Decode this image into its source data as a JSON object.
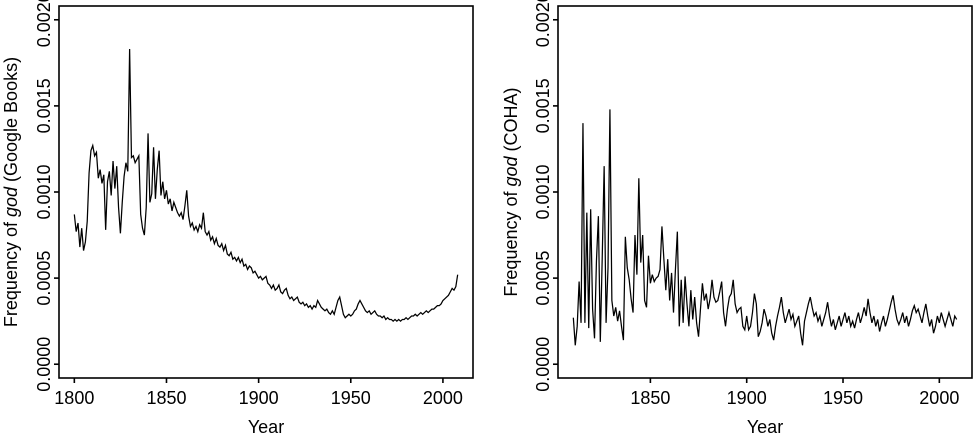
{
  "figure": {
    "background": "#ffffff",
    "axis_color": "#000000",
    "text_color": "#000000",
    "line_color": "#000000"
  },
  "chart_data": [
    {
      "id": "google-books",
      "type": "line",
      "title": "",
      "xlabel": "Year",
      "ylabel": "Frequency of god (Google Books)",
      "ylabel_parts": {
        "prefix": "Frequency of ",
        "italic_word": "god",
        "suffix": " (Google Books)"
      },
      "legend": "none",
      "grid": false,
      "xlim": [
        1800,
        2008
      ],
      "ylim": [
        0,
        0.002
      ],
      "x_ticks": {
        "values": [
          1800,
          1850,
          1900,
          1950,
          2000
        ],
        "labels": [
          "1800",
          "1850",
          "1900",
          "1950",
          "2000"
        ]
      },
      "y_ticks": {
        "values": [
          0,
          0.0005,
          0.001,
          0.0015,
          0.002
        ],
        "labels": [
          "0.0000",
          "0.0005",
          "0.0010",
          "0.0015",
          "0.0020"
        ]
      },
      "x_start": 1800,
      "x_end": 2008,
      "x_step": 1,
      "values": [
        0.00087,
        0.00077,
        0.00082,
        0.00068,
        0.00079,
        0.00066,
        0.00071,
        0.00083,
        0.00111,
        0.00124,
        0.00127,
        0.00121,
        0.00123,
        0.00108,
        0.00113,
        0.00105,
        0.0011,
        0.00078,
        0.00106,
        0.00112,
        0.00098,
        0.00118,
        0.00102,
        0.00115,
        0.00091,
        0.00076,
        0.00094,
        0.00109,
        0.00117,
        0.00112,
        0.00183,
        0.0012,
        0.00121,
        0.00117,
        0.00119,
        0.00121,
        0.00087,
        0.00079,
        0.00075,
        0.00091,
        0.00134,
        0.00094,
        0.00099,
        0.00126,
        0.00096,
        0.00113,
        0.00124,
        0.00098,
        0.00106,
        0.00096,
        0.00101,
        0.00093,
        0.00096,
        0.00089,
        0.00094,
        0.00091,
        0.00088,
        0.00086,
        0.00088,
        0.00084,
        0.00092,
        0.00101,
        0.00086,
        0.0008,
        0.00082,
        0.00078,
        0.0008,
        0.00077,
        0.00081,
        0.00079,
        0.00088,
        0.00077,
        0.00075,
        0.00077,
        0.00072,
        0.00074,
        0.0007,
        0.00073,
        0.00069,
        0.00068,
        0.0007,
        0.00066,
        0.00069,
        0.00064,
        0.00063,
        0.00065,
        0.00061,
        0.00062,
        0.0006,
        0.00062,
        0.00059,
        0.00061,
        0.00057,
        0.00058,
        0.00055,
        0.00057,
        0.00056,
        0.00053,
        0.00054,
        0.00052,
        0.0005,
        0.00051,
        0.00049,
        0.0005,
        0.00051,
        0.00047,
        0.00046,
        0.00044,
        0.00046,
        0.00043,
        0.00044,
        0.00046,
        0.00042,
        0.00041,
        0.00043,
        0.00044,
        0.0004,
        0.00038,
        0.00039,
        0.00037,
        0.00038,
        0.00039,
        0.00036,
        0.00035,
        0.00036,
        0.00034,
        0.00035,
        0.00033,
        0.00034,
        0.00032,
        0.00034,
        0.00033,
        0.00037,
        0.00035,
        0.00033,
        0.00032,
        0.00031,
        0.00032,
        0.0003,
        0.00029,
        0.00031,
        0.00029,
        0.00033,
        0.00037,
        0.00039,
        0.00034,
        0.00029,
        0.00027,
        0.00028,
        0.00029,
        0.00028,
        0.00029,
        0.00031,
        0.00032,
        0.00035,
        0.00037,
        0.00035,
        0.00033,
        0.00031,
        0.0003,
        0.00031,
        0.00029,
        0.0003,
        0.00031,
        0.00029,
        0.00028,
        0.00028,
        0.00027,
        0.00028,
        0.00026,
        0.00027,
        0.00026,
        0.00026,
        0.00025,
        0.00026,
        0.00025,
        0.00026,
        0.00025,
        0.00026,
        0.00026,
        0.00027,
        0.00026,
        0.00027,
        0.00028,
        0.00028,
        0.00029,
        0.00028,
        0.00029,
        0.0003,
        0.00029,
        0.0003,
        0.00031,
        0.0003,
        0.00031,
        0.00032,
        0.00032,
        0.00033,
        0.00034,
        0.00034,
        0.00035,
        0.00037,
        0.00038,
        0.00039,
        0.0004,
        0.00042,
        0.00044,
        0.00043,
        0.00045,
        0.00052
      ]
    },
    {
      "id": "coha",
      "type": "line",
      "title": "",
      "xlabel": "Year",
      "ylabel": "Frequency of god (COHA)",
      "ylabel_parts": {
        "prefix": "Frequency of ",
        "italic_word": "god",
        "suffix": " (COHA)"
      },
      "legend": "none",
      "grid": false,
      "xlim": [
        1810,
        2009
      ],
      "ylim": [
        0,
        0.002
      ],
      "x_ticks": {
        "values": [
          1850,
          1900,
          1950,
          2000
        ],
        "labels": [
          "1850",
          "1900",
          "1950",
          "2000"
        ]
      },
      "y_ticks": {
        "values": [
          0,
          0.0005,
          0.001,
          0.0015,
          0.002
        ],
        "labels": [
          "0.0000",
          "0.0005",
          "0.0010",
          "0.0015",
          "0.0020"
        ]
      },
      "x_start": 1810,
      "x_end": 2009,
      "x_step": 1,
      "values": [
        0.00027,
        0.00011,
        0.00022,
        0.00048,
        0.00024,
        0.0014,
        0.00024,
        0.00088,
        0.00021,
        0.0009,
        0.00032,
        0.00015,
        0.0006,
        0.00086,
        0.00013,
        0.00062,
        0.00115,
        0.00024,
        0.00056,
        0.00148,
        0.00037,
        0.00028,
        0.00033,
        0.00025,
        0.00031,
        0.00022,
        0.00014,
        0.00074,
        0.00056,
        0.00049,
        0.00038,
        0.0003,
        0.00075,
        0.00052,
        0.00108,
        0.00059,
        0.00075,
        0.00037,
        0.00033,
        0.00063,
        0.00047,
        0.00052,
        0.00048,
        0.0005,
        0.00051,
        0.00055,
        0.0008,
        0.00061,
        0.00043,
        0.00061,
        0.00037,
        0.00053,
        0.0003,
        0.00055,
        0.00077,
        0.00022,
        0.00049,
        0.00024,
        0.00051,
        0.00035,
        0.00022,
        0.00043,
        0.00026,
        0.00039,
        0.00024,
        0.00016,
        0.00032,
        0.00047,
        0.00037,
        0.00041,
        0.00032,
        0.00038,
        0.00049,
        0.00039,
        0.00036,
        0.00037,
        0.00042,
        0.00048,
        0.0003,
        0.00022,
        0.00032,
        0.00039,
        0.00041,
        0.00049,
        0.00035,
        0.0003,
        0.00032,
        0.00033,
        0.00022,
        0.0002,
        0.00028,
        0.0002,
        0.00022,
        0.0003,
        0.00041,
        0.00035,
        0.00016,
        0.00019,
        0.00024,
        0.00032,
        0.00028,
        0.00022,
        0.00026,
        0.00018,
        0.00014,
        0.00022,
        0.00028,
        0.00033,
        0.00039,
        0.0003,
        0.00024,
        0.00028,
        0.00032,
        0.00026,
        0.00029,
        0.00022,
        0.00025,
        0.00028,
        0.00018,
        0.00011,
        0.00025,
        0.0003,
        0.00035,
        0.00039,
        0.00033,
        0.00028,
        0.0003,
        0.00025,
        0.00028,
        0.00022,
        0.00026,
        0.0003,
        0.00036,
        0.00028,
        0.00022,
        0.00026,
        0.0002,
        0.00024,
        0.00028,
        0.00022,
        0.00026,
        0.0003,
        0.00024,
        0.00028,
        0.00022,
        0.00025,
        0.00021,
        0.00026,
        0.0003,
        0.00024,
        0.00028,
        0.00033,
        0.00028,
        0.00038,
        0.0003,
        0.00024,
        0.00028,
        0.00022,
        0.00026,
        0.00019,
        0.00024,
        0.00028,
        0.00022,
        0.00026,
        0.00031,
        0.00036,
        0.0004,
        0.00032,
        0.00026,
        0.00023,
        0.00026,
        0.0003,
        0.00024,
        0.00028,
        0.00022,
        0.00026,
        0.00031,
        0.00034,
        0.0003,
        0.00032,
        0.00028,
        0.00024,
        0.0003,
        0.00035,
        0.00028,
        0.00022,
        0.00026,
        0.00018,
        0.00022,
        0.00028,
        0.00024,
        0.0003,
        0.00026,
        0.00022,
        0.00026,
        0.0003,
        0.00026,
        0.00022,
        0.00028,
        0.00026
      ]
    }
  ]
}
